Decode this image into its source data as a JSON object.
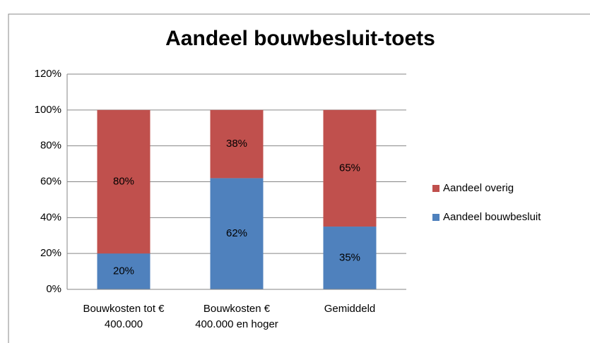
{
  "chart_data": {
    "type": "stacked_bar",
    "title": "Aandeel bouwbesluit-toets",
    "categories": [
      "Bouwkosten tot € 400.000",
      "Bouwkosten € 400.000 en hoger",
      "Gemiddeld"
    ],
    "series": [
      {
        "name": "Aandeel bouwbesluit",
        "color": "#4f81bd",
        "values": [
          20,
          62,
          35
        ],
        "value_labels": [
          "20%",
          "62%",
          "35%"
        ]
      },
      {
        "name": "Aandeel overig",
        "color": "#c0504d",
        "values": [
          80,
          38,
          65
        ],
        "value_labels": [
          "80%",
          "38%",
          "65%"
        ]
      }
    ],
    "ylim": [
      0,
      120
    ],
    "yticks": [
      {
        "value": 0,
        "label": "0%"
      },
      {
        "value": 20,
        "label": "20%"
      },
      {
        "value": 40,
        "label": "40%"
      },
      {
        "value": 60,
        "label": "60%"
      },
      {
        "value": 80,
        "label": "80%"
      },
      {
        "value": 100,
        "label": "100%"
      },
      {
        "value": 120,
        "label": "120%"
      }
    ],
    "grid": true,
    "legend": "right"
  }
}
